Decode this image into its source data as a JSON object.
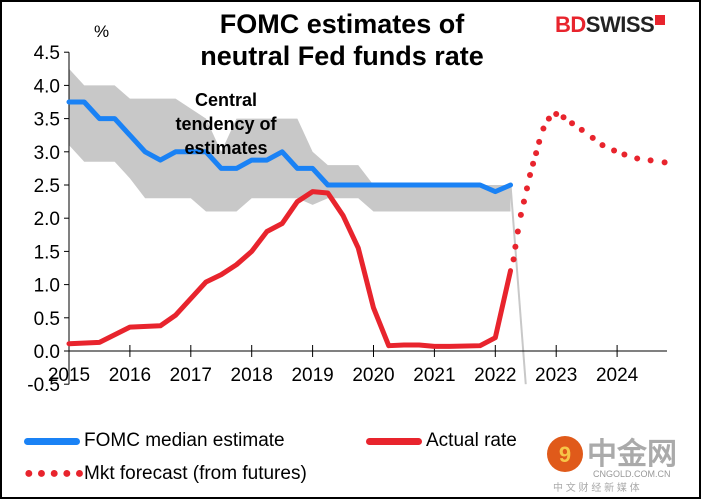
{
  "title_line1": "FOMC estimates of",
  "title_line2": "neutral Fed funds rate",
  "brand": {
    "bd": "BD",
    "swiss": "SWISS"
  },
  "watermark": {
    "cn": "中金网",
    "domain": "CNGOLD.COM.CN",
    "tagline": "中 文 财 经 新 媒 体"
  },
  "colors": {
    "median": "#1a82f5",
    "actual": "#e8242d",
    "band": "#c8c8c8"
  },
  "chart_data": {
    "type": "line",
    "title": "FOMC estimates of neutral Fed funds rate",
    "ylabel": "%",
    "ylim": [
      -0.5,
      4.5
    ],
    "xlim": [
      2015,
      2024.9
    ],
    "yticks": [
      "-0.5",
      "0.0",
      "0.5",
      "1.0",
      "1.5",
      "2.0",
      "2.5",
      "3.0",
      "3.5",
      "4.0",
      "4.5"
    ],
    "xticks": [
      "2015",
      "2016",
      "2017",
      "2018",
      "2019",
      "2020",
      "2021",
      "2022",
      "2023",
      "2024"
    ],
    "annotation": [
      "Central",
      "tendency of",
      "estimates"
    ],
    "band": {
      "name": "Central tendency of estimates",
      "upper": [
        [
          2015,
          4.25
        ],
        [
          2015.25,
          4.0
        ],
        [
          2015.75,
          4.0
        ],
        [
          2016,
          3.8
        ],
        [
          2016.75,
          3.8
        ],
        [
          2017.25,
          3.5
        ],
        [
          2017.5,
          3.0
        ],
        [
          2017.75,
          3.5
        ],
        [
          2018.75,
          3.5
        ],
        [
          2019,
          3.0
        ],
        [
          2019.25,
          2.8
        ],
        [
          2019.75,
          2.8
        ],
        [
          2020,
          2.5
        ],
        [
          2022.25,
          2.5
        ],
        [
          2022.5,
          -0.5
        ]
      ],
      "lower": [
        [
          2015,
          3.1
        ],
        [
          2015.25,
          2.85
        ],
        [
          2015.75,
          2.85
        ],
        [
          2016,
          2.6
        ],
        [
          2016.25,
          2.3
        ],
        [
          2017,
          2.3
        ],
        [
          2017.25,
          2.1
        ],
        [
          2017.75,
          2.1
        ],
        [
          2018,
          2.3
        ],
        [
          2018.75,
          2.3
        ],
        [
          2019,
          2.2
        ],
        [
          2019.25,
          2.3
        ],
        [
          2019.75,
          2.3
        ],
        [
          2020,
          2.1
        ],
        [
          2022.25,
          2.1
        ]
      ]
    },
    "series": [
      {
        "name": "FOMC median estimate",
        "style": "line",
        "points": [
          [
            2015,
            3.75
          ],
          [
            2015.25,
            3.75
          ],
          [
            2015.5,
            3.5
          ],
          [
            2015.75,
            3.5
          ],
          [
            2016,
            3.25
          ],
          [
            2016.25,
            3.0
          ],
          [
            2016.5,
            2.875
          ],
          [
            2016.75,
            3.0
          ],
          [
            2017.25,
            3.0
          ],
          [
            2017.5,
            2.75
          ],
          [
            2017.75,
            2.75
          ],
          [
            2018,
            2.875
          ],
          [
            2018.25,
            2.875
          ],
          [
            2018.5,
            3.0
          ],
          [
            2018.75,
            2.75
          ],
          [
            2019,
            2.75
          ],
          [
            2019.25,
            2.5
          ],
          [
            2021.75,
            2.5
          ],
          [
            2022,
            2.4
          ],
          [
            2022.25,
            2.5
          ]
        ]
      },
      {
        "name": "Actual rate",
        "style": "line",
        "points": [
          [
            2015,
            0.11
          ],
          [
            2015.5,
            0.13
          ],
          [
            2016,
            0.36
          ],
          [
            2016.5,
            0.38
          ],
          [
            2016.75,
            0.54
          ],
          [
            2017,
            0.79
          ],
          [
            2017.25,
            1.04
          ],
          [
            2017.5,
            1.15
          ],
          [
            2017.75,
            1.3
          ],
          [
            2018,
            1.5
          ],
          [
            2018.25,
            1.8
          ],
          [
            2018.5,
            1.92
          ],
          [
            2018.75,
            2.25
          ],
          [
            2019,
            2.4
          ],
          [
            2019.25,
            2.38
          ],
          [
            2019.5,
            2.04
          ],
          [
            2019.75,
            1.55
          ],
          [
            2020,
            0.65
          ],
          [
            2020.25,
            0.08
          ],
          [
            2020.5,
            0.09
          ],
          [
            2020.75,
            0.09
          ],
          [
            2021,
            0.07
          ],
          [
            2021.25,
            0.07
          ],
          [
            2021.75,
            0.08
          ],
          [
            2022,
            0.2
          ],
          [
            2022.25,
            1.21
          ]
        ]
      },
      {
        "name": "Mkt forecast (from futures)",
        "style": "dots",
        "points": [
          [
            2022.3,
            1.38
          ],
          [
            2022.33,
            1.57
          ],
          [
            2022.37,
            1.8
          ],
          [
            2022.42,
            2.05
          ],
          [
            2022.47,
            2.25
          ],
          [
            2022.52,
            2.45
          ],
          [
            2022.57,
            2.65
          ],
          [
            2022.62,
            2.82
          ],
          [
            2022.67,
            2.98
          ],
          [
            2022.72,
            3.15
          ],
          [
            2022.79,
            3.35
          ],
          [
            2022.88,
            3.5
          ],
          [
            2023,
            3.57
          ],
          [
            2023.12,
            3.52
          ],
          [
            2023.26,
            3.43
          ],
          [
            2023.42,
            3.33
          ],
          [
            2023.6,
            3.21
          ],
          [
            2023.76,
            3.1
          ],
          [
            2023.95,
            3.02
          ],
          [
            2024.12,
            2.96
          ],
          [
            2024.33,
            2.9
          ],
          [
            2024.55,
            2.87
          ],
          [
            2024.78,
            2.84
          ]
        ]
      }
    ],
    "legend": "bottom"
  }
}
